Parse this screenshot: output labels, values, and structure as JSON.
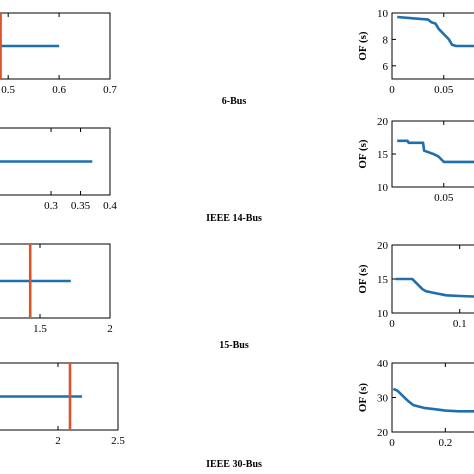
{
  "colors": {
    "blue": "#1f6fad",
    "orange": "#d9542b",
    "axis": "#000000"
  },
  "captions": [
    "6-Bus",
    "IEEE 14-Bus",
    "15-Bus",
    "IEEE 30-Bus"
  ],
  "chart_data": [
    {
      "panel": "6-Bus left",
      "type": "line",
      "xlim": [
        0.48,
        0.7
      ],
      "xticks": [
        "0.5",
        "0.6",
        "0.7"
      ],
      "series": [
        {
          "values": [
            [
              0.48,
              0.5
            ],
            [
              0.6,
              0.5
            ]
          ]
        }
      ],
      "vline_x": 0.485
    },
    {
      "panel": "6-Bus right",
      "type": "line",
      "ylabel": "OF (s)",
      "xlim": [
        0,
        0.085
      ],
      "ylim": [
        5,
        10
      ],
      "xticks": [
        "0",
        "0.05"
      ],
      "yticks": [
        "10",
        "8",
        "6"
      ],
      "series": [
        {
          "values": [
            [
              0.005,
              9.7
            ],
            [
              0.02,
              9.6
            ],
            [
              0.035,
              9.5
            ],
            [
              0.038,
              9.3
            ],
            [
              0.042,
              9.2
            ],
            [
              0.045,
              8.8
            ],
            [
              0.05,
              8.4
            ],
            [
              0.055,
              8.0
            ],
            [
              0.058,
              7.6
            ],
            [
              0.062,
              7.5
            ],
            [
              0.085,
              7.5
            ]
          ]
        }
      ]
    },
    {
      "panel": "IEEE 14-Bus left",
      "type": "line",
      "xlim": [
        0.21,
        0.4
      ],
      "xticks": [
        "0.3",
        "0.35",
        "0.4"
      ],
      "series": [
        {
          "values": [
            [
              0.21,
              0.5
            ],
            [
              0.37,
              0.5
            ]
          ]
        }
      ]
    },
    {
      "panel": "IEEE 14-Bus right",
      "type": "line",
      "ylabel": "OF (s)",
      "xlim": [
        0,
        0.085
      ],
      "ylim": [
        10,
        20
      ],
      "xticks": [
        "0.05"
      ],
      "yticks": [
        "20",
        "15",
        "10"
      ],
      "series": [
        {
          "values": [
            [
              0.005,
              17.0
            ],
            [
              0.015,
              17.0
            ],
            [
              0.016,
              16.7
            ],
            [
              0.03,
              16.7
            ],
            [
              0.031,
              15.5
            ],
            [
              0.04,
              15.0
            ],
            [
              0.045,
              14.6
            ],
            [
              0.05,
              13.8
            ],
            [
              0.085,
              13.8
            ]
          ]
        }
      ]
    },
    {
      "panel": "15-Bus left",
      "type": "line",
      "xlim": [
        1.2,
        2
      ],
      "xticks": [
        "1.5",
        "2"
      ],
      "series": [
        {
          "values": [
            [
              1.2,
              0.5
            ],
            [
              1.72,
              0.5
            ]
          ]
        }
      ],
      "vline_x": 1.43
    },
    {
      "panel": "15-Bus right",
      "type": "line",
      "ylabel": "OF (s)",
      "xlim": [
        0,
        0.13
      ],
      "ylim": [
        10,
        20
      ],
      "xticks": [
        "0",
        "0.1"
      ],
      "yticks": [
        "20",
        "15",
        "10"
      ],
      "series": [
        {
          "values": [
            [
              0.005,
              15.0
            ],
            [
              0.03,
              15.0
            ],
            [
              0.035,
              14.5
            ],
            [
              0.04,
              14.0
            ],
            [
              0.045,
              13.5
            ],
            [
              0.05,
              13.2
            ],
            [
              0.06,
              13.0
            ],
            [
              0.08,
              12.6
            ],
            [
              0.1,
              12.5
            ],
            [
              0.13,
              12.4
            ]
          ]
        }
      ]
    },
    {
      "panel": "IEEE 30-Bus left",
      "type": "line",
      "xlim": [
        1.5,
        2.5
      ],
      "xticks": [
        "2",
        "2.5"
      ],
      "series": [
        {
          "values": [
            [
              1.5,
              0.5
            ],
            [
              2.2,
              0.5
            ]
          ]
        }
      ],
      "vline_x": 2.1
    },
    {
      "panel": "IEEE 30-Bus right",
      "type": "line",
      "ylabel": "OF (s)",
      "xlim": [
        0,
        0.33
      ],
      "ylim": [
        20,
        40
      ],
      "xticks": [
        "0",
        "0.2"
      ],
      "yticks": [
        "40",
        "30",
        "20"
      ],
      "series": [
        {
          "values": [
            [
              0.005,
              32.5
            ],
            [
              0.02,
              32.0
            ],
            [
              0.04,
              30.5
            ],
            [
              0.06,
              29.0
            ],
            [
              0.08,
              27.8
            ],
            [
              0.12,
              27.0
            ],
            [
              0.16,
              26.6
            ],
            [
              0.2,
              26.2
            ],
            [
              0.25,
              26.0
            ],
            [
              0.33,
              26.0
            ]
          ]
        }
      ]
    }
  ]
}
